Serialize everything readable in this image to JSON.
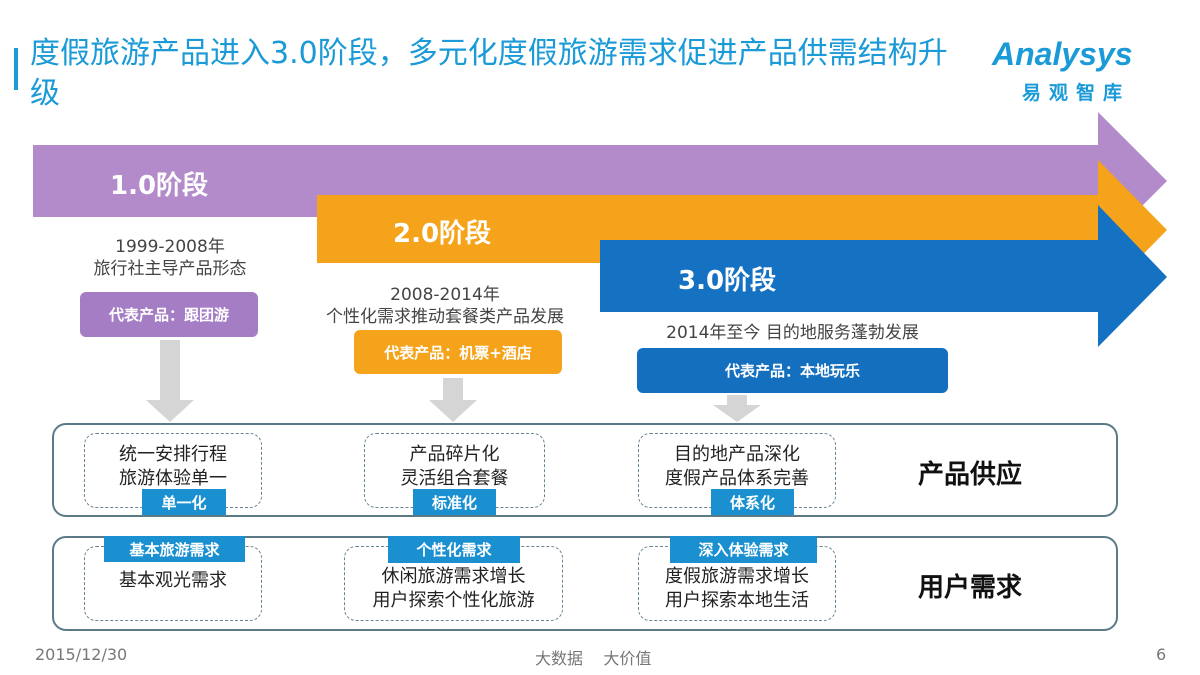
{
  "title": "度假旅游产品进入3.0阶段，多元化度假旅游需求促进产品供需结构升级",
  "logo": {
    "name": "Analysys",
    "sub": "易观智库"
  },
  "colors": {
    "stage1": "#B38BCB",
    "stage2": "#F5A31A",
    "stage3": "#1572C2",
    "accent": "#1A9AD6"
  },
  "stages": [
    {
      "label": "1.0阶段",
      "period": "1999-2008年",
      "desc": "旅行社主导产品形态",
      "product": "代表产品：跟团游"
    },
    {
      "label": "2.0阶段",
      "period": "2008-2014年",
      "desc": "个性化需求推动套餐类产品发展",
      "product": "代表产品：机票+酒店"
    },
    {
      "label": "3.0阶段",
      "period": "2014年至今   目的地服务蓬勃发展",
      "desc": "",
      "product": "代表产品：本地玩乐"
    }
  ],
  "supply": {
    "label": "产品供应",
    "items": [
      {
        "lines": [
          "统一安排行程",
          "旅游体验单一"
        ],
        "tag": "单一化"
      },
      {
        "lines": [
          "产品碎片化",
          "灵活组合套餐"
        ],
        "tag": "标准化"
      },
      {
        "lines": [
          "目的地产品深化",
          "度假产品体系完善"
        ],
        "tag": "体系化"
      }
    ]
  },
  "demand": {
    "label": "用户需求",
    "items": [
      {
        "lines": [
          "基本观光需求",
          ""
        ],
        "tag": "基本旅游需求"
      },
      {
        "lines": [
          "休闲旅游需求增长",
          "用户探索个性化旅游"
        ],
        "tag": "个性化需求"
      },
      {
        "lines": [
          "度假旅游需求增长",
          "用户探索本地生活"
        ],
        "tag": "深入体验需求"
      }
    ]
  },
  "footer": {
    "date": "2015/12/30",
    "slogan": "大数据    大价值",
    "page": "6"
  }
}
